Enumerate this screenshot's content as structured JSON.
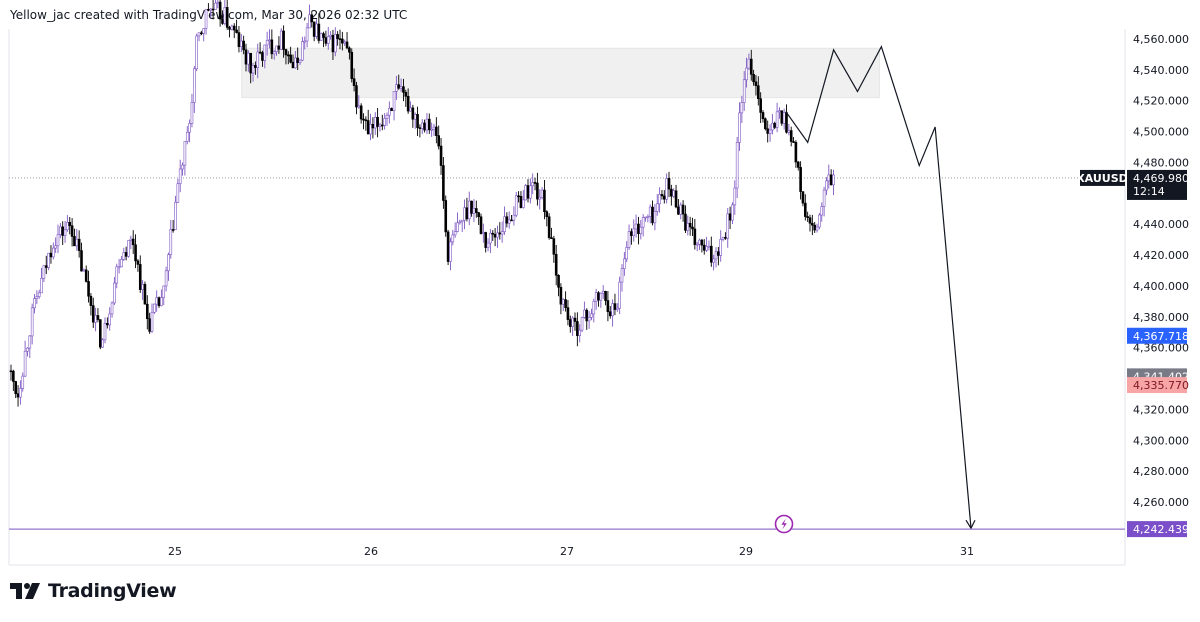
{
  "header": {
    "attribution": "Yellow_jac created with TradingView.com, Mar 30, 2026 02:32 UTC"
  },
  "brand": {
    "name": "TradingView"
  },
  "chart_data": {
    "type": "candlestick",
    "symbol": "XAUUSD",
    "y_axis": {
      "min": 4232,
      "max": 4574,
      "ticks": [
        4560,
        4540,
        4520,
        4500,
        4480,
        4460,
        4440,
        4420,
        4400,
        4380,
        4360,
        4340,
        4320,
        4300,
        4280,
        4260
      ],
      "tick_labels": [
        "4,560.000",
        "4,540.000",
        "4,520.000",
        "4,500.000",
        "4,480.000",
        "",
        "4,440.000",
        "4,420.000",
        "4,400.000",
        "4,380.000",
        "4,360.000",
        "",
        "4,320.000",
        "4,300.000",
        "4,280.000",
        "4,260.000"
      ]
    },
    "x_axis": {
      "min_day": 24.0,
      "max_day": 31.85,
      "ticks": [
        {
          "day": 24.75,
          "label": "25"
        },
        {
          "day": 25.75,
          "label": "26"
        },
        {
          "day": 26.75,
          "label": "27"
        },
        {
          "day": 27.75,
          "label": "29"
        },
        {
          "day": 28.86,
          "label": "31"
        }
      ]
    },
    "price_badges": [
      {
        "label": "XAUUSD",
        "value": "4,469.980",
        "sub": "12:14",
        "price": 4469.98,
        "bg": "#131722",
        "fg": "#ffffff"
      },
      {
        "value": "4,367.718",
        "price": 4367.72,
        "bg": "#2962ff",
        "fg": "#ffffff"
      },
      {
        "value": "4,341.402",
        "price": 4341.4,
        "bg": "#787b86",
        "fg": "#ffffff"
      },
      {
        "value": "4,335.770",
        "price": 4335.77,
        "bg": "#f7a5a5",
        "fg": "#801922"
      },
      {
        "value": "4,242.439",
        "price": 4242.44,
        "bg": "#7b4fc9",
        "fg": "#ffffff"
      }
    ],
    "current_price": 4469.98,
    "target_line": {
      "price": 4242.439,
      "color": "#9575cd"
    },
    "resistance_zone": {
      "day_start": 25.09,
      "day_end": 28.42,
      "price_low": 4522,
      "price_high": 4554
    },
    "projection_path": [
      {
        "day": 27.95,
        "price": 4513
      },
      {
        "day": 28.06,
        "price": 4493
      },
      {
        "day": 28.19,
        "price": 4553
      },
      {
        "day": 28.31,
        "price": 4526
      },
      {
        "day": 28.43,
        "price": 4555
      },
      {
        "day": 28.62,
        "price": 4478
      },
      {
        "day": 28.7,
        "price": 4503
      },
      {
        "day": 28.88,
        "price": 4243
      }
    ],
    "candle_colors": {
      "up": "#ffffff",
      "up_border": "#7e57c2",
      "down": "#000000"
    },
    "price_anchors": [
      [
        24.0,
        4345
      ],
      [
        24.04,
        4330
      ],
      [
        24.1,
        4378
      ],
      [
        24.2,
        4430
      ],
      [
        24.28,
        4440
      ],
      [
        24.35,
        4400
      ],
      [
        24.42,
        4362
      ],
      [
        24.5,
        4420
      ],
      [
        24.56,
        4430
      ],
      [
        24.63,
        4375
      ],
      [
        24.7,
        4395
      ],
      [
        24.76,
        4462
      ],
      [
        24.82,
        4500
      ],
      [
        24.86,
        4555
      ],
      [
        24.92,
        4580
      ],
      [
        25.0,
        4575
      ],
      [
        25.06,
        4562
      ],
      [
        25.14,
        4540
      ],
      [
        25.22,
        4555
      ],
      [
        25.3,
        4560
      ],
      [
        25.36,
        4540
      ],
      [
        25.44,
        4572
      ],
      [
        25.52,
        4555
      ],
      [
        25.58,
        4560
      ],
      [
        25.64,
        4548
      ],
      [
        25.68,
        4515
      ],
      [
        25.74,
        4498
      ],
      [
        25.82,
        4510
      ],
      [
        25.88,
        4525
      ],
      [
        25.94,
        4518
      ],
      [
        26.0,
        4505
      ],
      [
        26.04,
        4510
      ],
      [
        26.1,
        4490
      ],
      [
        26.14,
        4420
      ],
      [
        26.2,
        4440
      ],
      [
        26.26,
        4455
      ],
      [
        26.34,
        4428
      ],
      [
        26.44,
        4442
      ],
      [
        26.52,
        4458
      ],
      [
        26.58,
        4466
      ],
      [
        26.64,
        4452
      ],
      [
        26.7,
        4400
      ],
      [
        26.78,
        4372
      ],
      [
        26.86,
        4380
      ],
      [
        26.94,
        4395
      ],
      [
        27.02,
        4382
      ],
      [
        27.08,
        4430
      ],
      [
        27.16,
        4440
      ],
      [
        27.24,
        4448
      ],
      [
        27.3,
        4465
      ],
      [
        27.38,
        4452
      ],
      [
        27.44,
        4432
      ],
      [
        27.5,
        4425
      ],
      [
        27.56,
        4418
      ],
      [
        27.62,
        4432
      ],
      [
        27.68,
        4455
      ],
      [
        27.72,
        4520
      ],
      [
        27.77,
        4545
      ],
      [
        27.82,
        4520
      ],
      [
        27.86,
        4495
      ],
      [
        27.92,
        4513
      ],
      [
        27.98,
        4498
      ],
      [
        28.02,
        4465
      ],
      [
        28.05,
        4445
      ],
      [
        28.09,
        4432
      ],
      [
        28.13,
        4450
      ],
      [
        28.16,
        4468
      ],
      [
        28.2,
        4470
      ]
    ]
  }
}
